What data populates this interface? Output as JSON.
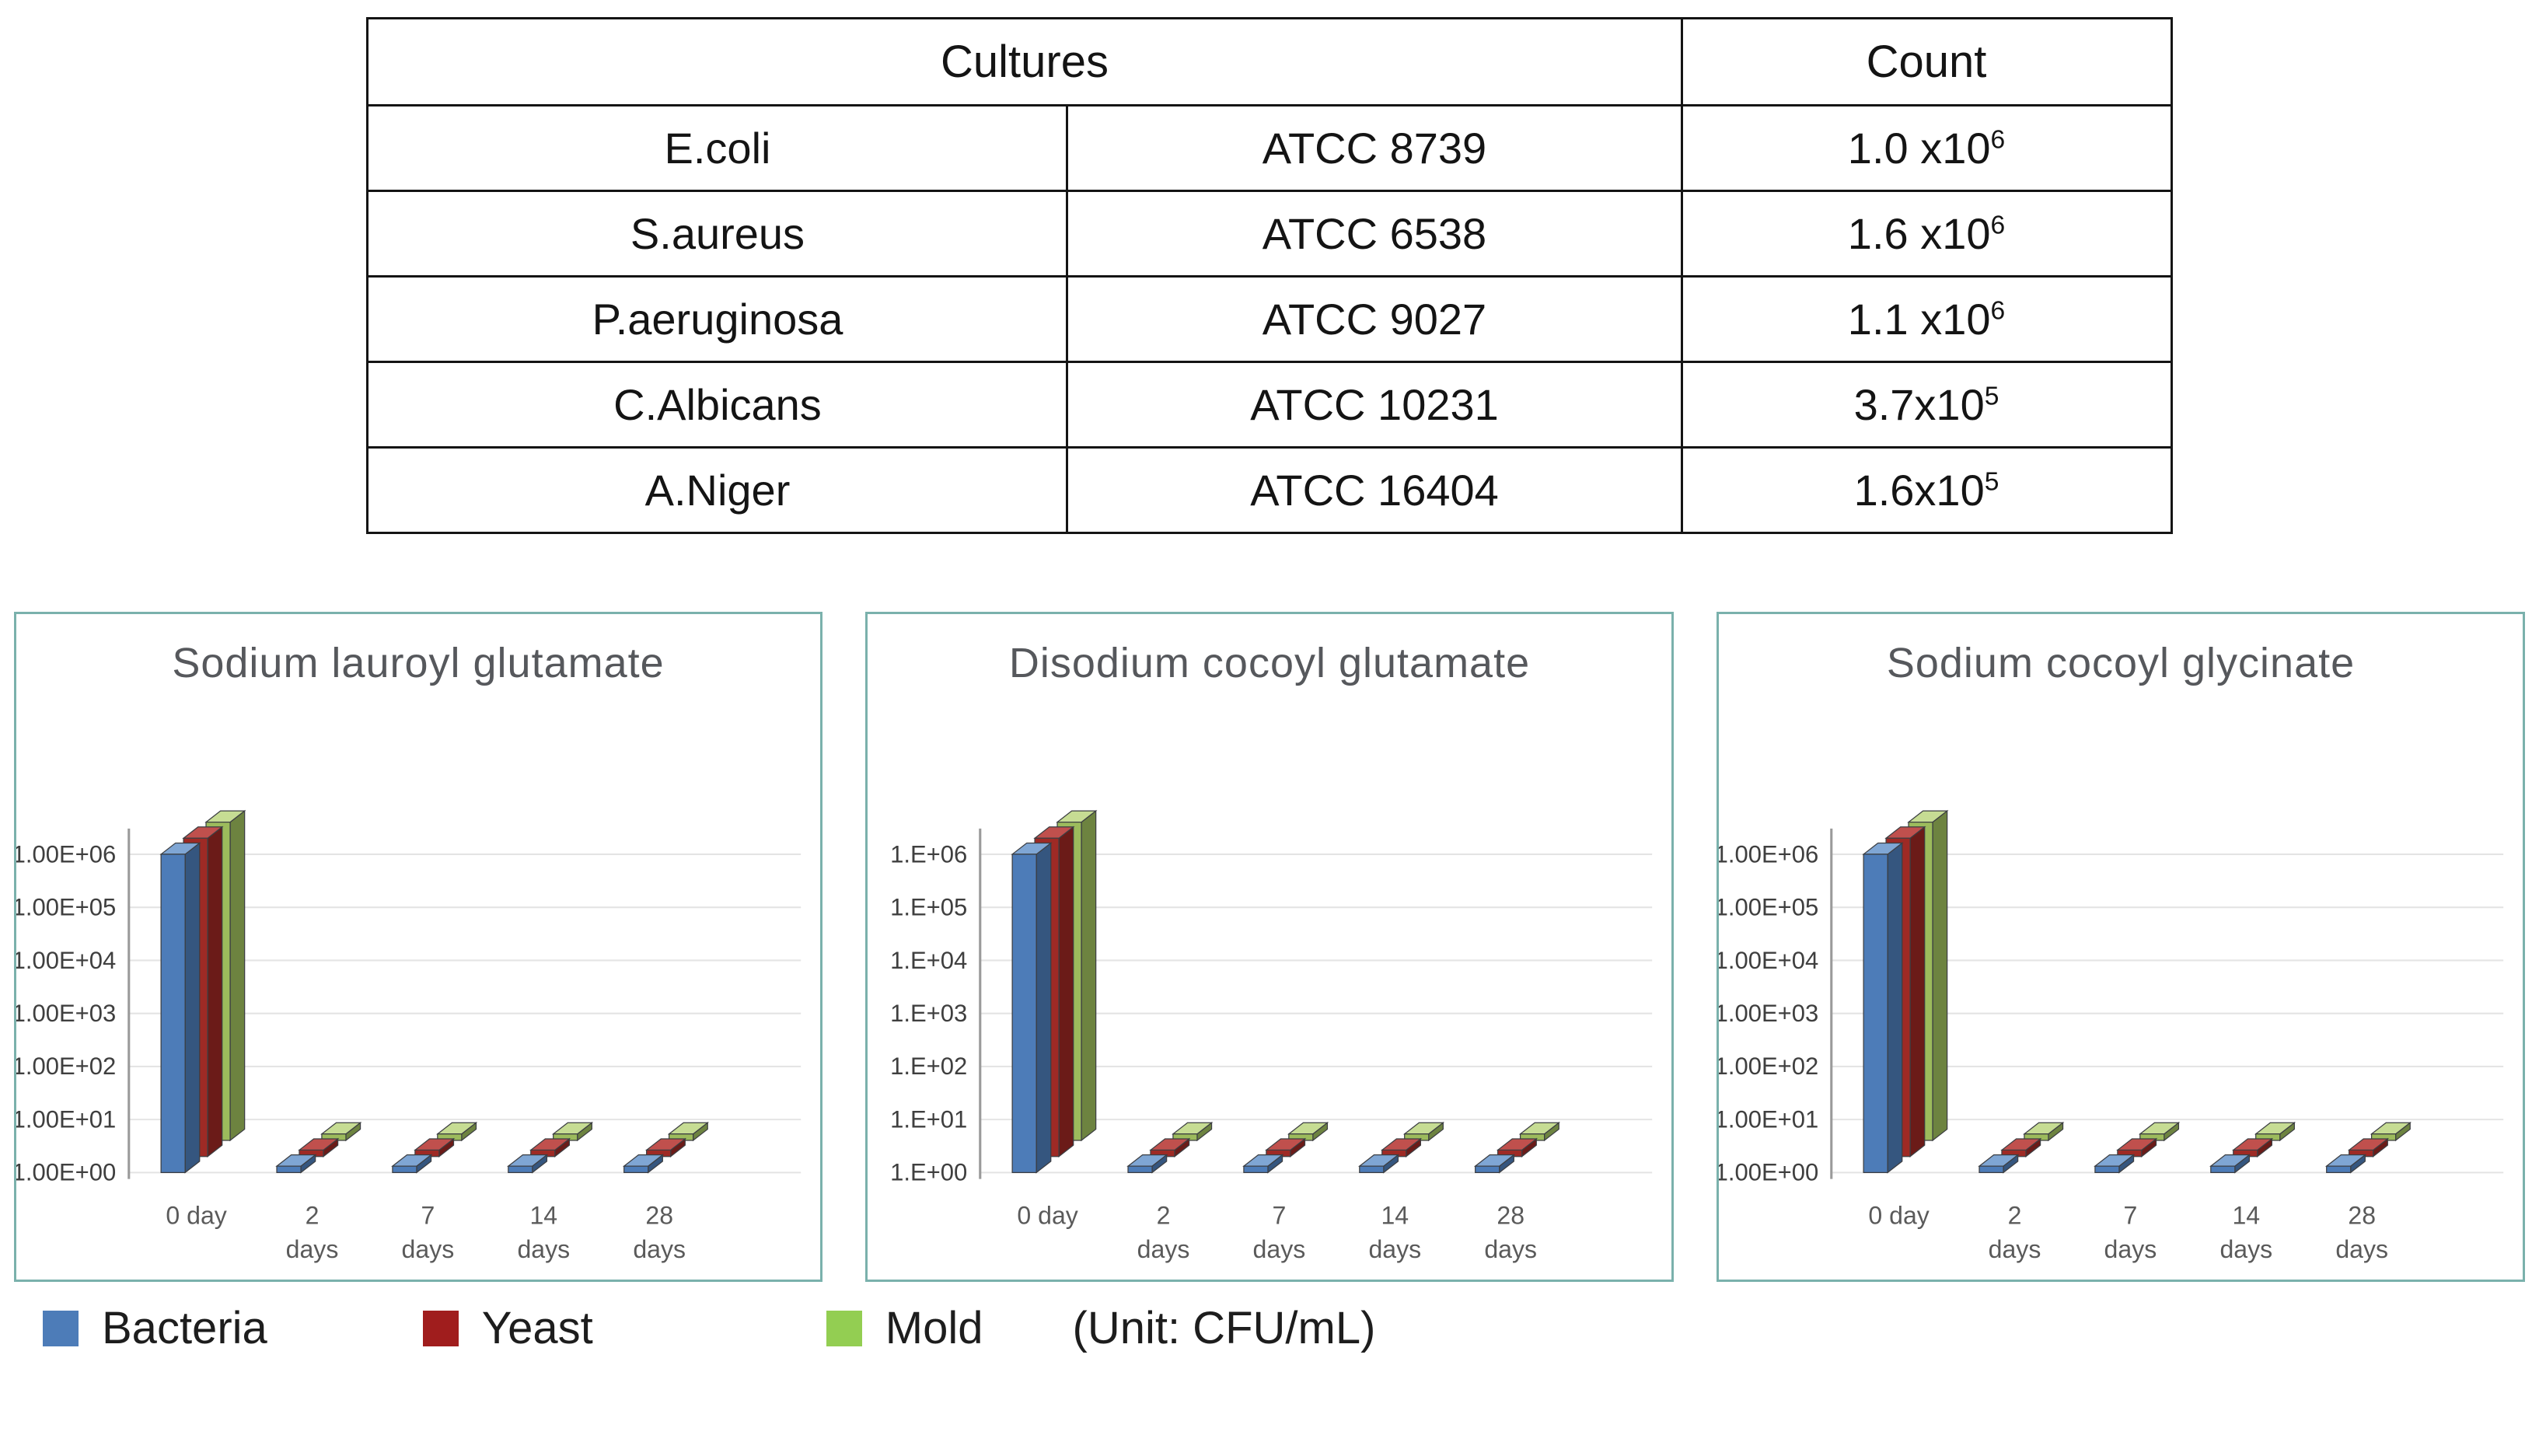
{
  "table": {
    "header": {
      "cultures": "Cultures",
      "count": "Count"
    },
    "rows": [
      {
        "name": "E.coli",
        "atcc": "ATCC 8739",
        "count_base": "1.0 x10",
        "count_exp": "6"
      },
      {
        "name": "S.aureus",
        "atcc": "ATCC 6538",
        "count_base": "1.6 x10",
        "count_exp": "6"
      },
      {
        "name": "P.aeruginosa",
        "atcc": "ATCC 9027",
        "count_base": "1.1 x10",
        "count_exp": "6"
      },
      {
        "name": "C.Albicans",
        "atcc": "ATCC 10231",
        "count_base": "3.7x10",
        "count_exp": "5"
      },
      {
        "name": "A.Niger",
        "atcc": "ATCC 16404",
        "count_base": "1.6x10",
        "count_exp": "5"
      }
    ]
  },
  "chart_data": [
    {
      "type": "bar",
      "projection": "3d",
      "title": "Sodium lauroyl glutamate",
      "categories": [
        "0 day",
        "2 days",
        "7 days",
        "14 days",
        "28 days"
      ],
      "series": [
        {
          "name": "Bacteria",
          "values": [
            1000000,
            1,
            1,
            1,
            1
          ]
        },
        {
          "name": "Yeast",
          "values": [
            1000000,
            1,
            1,
            1,
            1
          ]
        },
        {
          "name": "Mold",
          "values": [
            1000000,
            1,
            1,
            1,
            1
          ]
        }
      ],
      "yticks": [
        "1.00E+06",
        "1.00E+05",
        "1.00E+04",
        "1.00E+03",
        "1.00E+02",
        "1.00E+01",
        "1.00E+00"
      ],
      "yscale": "log",
      "ylim": [
        1,
        1000000
      ],
      "grid": true,
      "legend_position": "bottom-shared"
    },
    {
      "type": "bar",
      "projection": "3d",
      "title": "Disodium cocoyl glutamate",
      "categories": [
        "0 day",
        "2 days",
        "7 days",
        "14 days",
        "28 days"
      ],
      "series": [
        {
          "name": "Bacteria",
          "values": [
            1000000,
            1,
            1,
            1,
            1
          ]
        },
        {
          "name": "Yeast",
          "values": [
            1000000,
            1,
            1,
            1,
            1
          ]
        },
        {
          "name": "Mold",
          "values": [
            1000000,
            1,
            1,
            1,
            1
          ]
        }
      ],
      "yticks": [
        "1.E+06",
        "1.E+05",
        "1.E+04",
        "1.E+03",
        "1.E+02",
        "1.E+01",
        "1.E+00"
      ],
      "yscale": "log",
      "ylim": [
        1,
        1000000
      ],
      "grid": true,
      "legend_position": "bottom-shared"
    },
    {
      "type": "bar",
      "projection": "3d",
      "title": "Sodium cocoyl glycinate",
      "categories": [
        "0 day",
        "2 days",
        "7 days",
        "14 days",
        "28 days"
      ],
      "series": [
        {
          "name": "Bacteria",
          "values": [
            1000000,
            1,
            1,
            1,
            1
          ]
        },
        {
          "name": "Yeast",
          "values": [
            1000000,
            1,
            1,
            1,
            1
          ]
        },
        {
          "name": "Mold",
          "values": [
            1000000,
            1,
            1,
            1,
            1
          ]
        }
      ],
      "yticks": [
        "1.00E+06",
        "1.00E+05",
        "1.00E+04",
        "1.00E+03",
        "1.00E+02",
        "1.00E+01",
        "1.00E+00"
      ],
      "yscale": "log",
      "ylim": [
        1,
        1000000
      ],
      "grid": true,
      "legend_position": "bottom-shared"
    }
  ],
  "legend": {
    "items": [
      {
        "label": "Bacteria"
      },
      {
        "label": "Yeast"
      },
      {
        "label": "Mold"
      }
    ],
    "unit": "(Unit: CFU/mL)"
  },
  "colors": {
    "panel_border": "#7ab1ac",
    "series": {
      "Bacteria": {
        "front": "#4d7cb8",
        "side": "#35567f",
        "top": "#7fa6d4",
        "legend": "#4d7cb8"
      },
      "Yeast": {
        "front": "#9e2a25",
        "side": "#6b1b18",
        "top": "#c0504d",
        "legend": "#a01d1d"
      },
      "Mold": {
        "front": "#9cbb5c",
        "side": "#6d8340",
        "top": "#c6dc93",
        "legend": "#93ce52"
      }
    }
  }
}
